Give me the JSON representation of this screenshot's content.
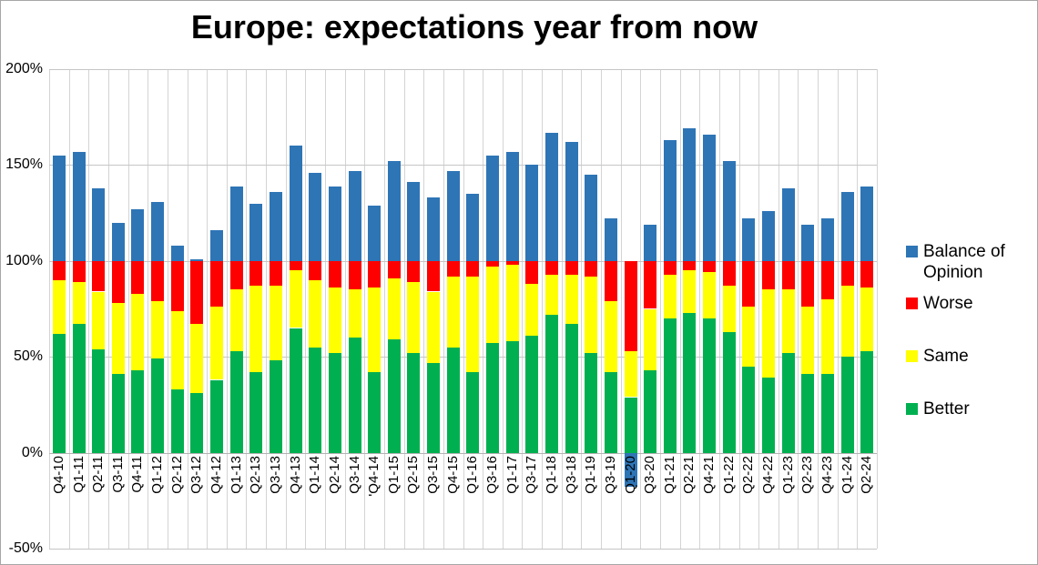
{
  "title": "Europe: expectations year from now",
  "y_axis": {
    "labels": [
      "200%",
      "150%",
      "100%",
      "50%",
      "0%",
      "-50%"
    ],
    "values": [
      200,
      150,
      100,
      50,
      0,
      -50
    ]
  },
  "legend": [
    {
      "label": "Balance of Opinion",
      "color": "#2E75B6"
    },
    {
      "label": "Worse",
      "color": "#FF0000"
    },
    {
      "label": "Same",
      "color": "#FFFF00"
    },
    {
      "label": "Better",
      "color": "#00B050"
    }
  ],
  "chart_data": {
    "type": "bar",
    "stacked": true,
    "title": "Europe: expectations year from now",
    "categories": [
      "Q4-10",
      "Q1-11",
      "Q2-11",
      "Q3-11",
      "Q4-11",
      "Q1-12",
      "Q2-12",
      "Q3-12",
      "Q4-12",
      "Q1-13",
      "Q2-13",
      "Q3-13",
      "Q4-13",
      "Q1-14",
      "Q2-14",
      "Q3-14",
      "'Q4-14",
      "Q1-15",
      "Q2-15",
      "Q3-15",
      "Q4-15",
      "Q1-16",
      "Q3-16",
      "Q1-17",
      "Q3-17",
      "Q1-18",
      "Q3-18",
      "Q1-19",
      "Q3-19",
      "Q1-20",
      "Q3-20",
      "Q1-21",
      "Q2-21",
      "Q4-21",
      "Q1-22",
      "Q2-22",
      "Q4-22",
      "Q1-23",
      "Q2-23",
      "Q4-23",
      "Q1-24",
      "Q2-24"
    ],
    "series": [
      {
        "name": "Better",
        "color": "#00B050",
        "values": [
          62,
          67,
          54,
          41,
          43,
          49,
          33,
          31,
          38,
          53,
          42,
          48,
          65,
          55,
          52,
          60,
          42,
          59,
          52,
          47,
          55,
          42,
          57,
          58,
          61,
          72,
          67,
          52,
          42,
          29,
          43,
          70,
          73,
          70,
          63,
          45,
          39,
          52,
          41,
          41,
          50,
          53
        ]
      },
      {
        "name": "Same",
        "color": "#FFFF00",
        "values": [
          28,
          22,
          30,
          37,
          40,
          30,
          41,
          36,
          38,
          32,
          45,
          39,
          30,
          35,
          34,
          25,
          44,
          32,
          37,
          37,
          37,
          50,
          40,
          40,
          27,
          21,
          26,
          40,
          37,
          24,
          32,
          23,
          22,
          24,
          24,
          31,
          46,
          33,
          35,
          39,
          37,
          33
        ]
      },
      {
        "name": "Worse",
        "color": "#FF0000",
        "values": [
          10,
          11,
          16,
          22,
          17,
          21,
          26,
          33,
          24,
          15,
          13,
          13,
          5,
          10,
          14,
          15,
          14,
          9,
          11,
          16,
          8,
          8,
          3,
          2,
          12,
          7,
          7,
          8,
          21,
          47,
          25,
          7,
          5,
          6,
          13,
          24,
          15,
          15,
          24,
          20,
          13,
          14
        ]
      },
      {
        "name": "Balance of Opinion",
        "color": "#2E75B6",
        "values": [
          55,
          57,
          38,
          20,
          27,
          31,
          8,
          1,
          16,
          39,
          30,
          36,
          60,
          46,
          39,
          47,
          29,
          52,
          41,
          33,
          47,
          35,
          55,
          57,
          50,
          67,
          62,
          45,
          22,
          -18,
          19,
          63,
          69,
          66,
          52,
          22,
          26,
          38,
          19,
          22,
          36,
          39
        ]
      }
    ],
    "ylim": [
      -50,
      200
    ],
    "ytick_step": 50,
    "ytick_format": "percent",
    "grid": true,
    "legend_position": "right",
    "layout_hints": "Better/Same/Worse stack to 100%; Balance of Opinion stacks above the 100% line; negative balance (Q1-20) is drawn below the 0% axis behind its category label."
  }
}
